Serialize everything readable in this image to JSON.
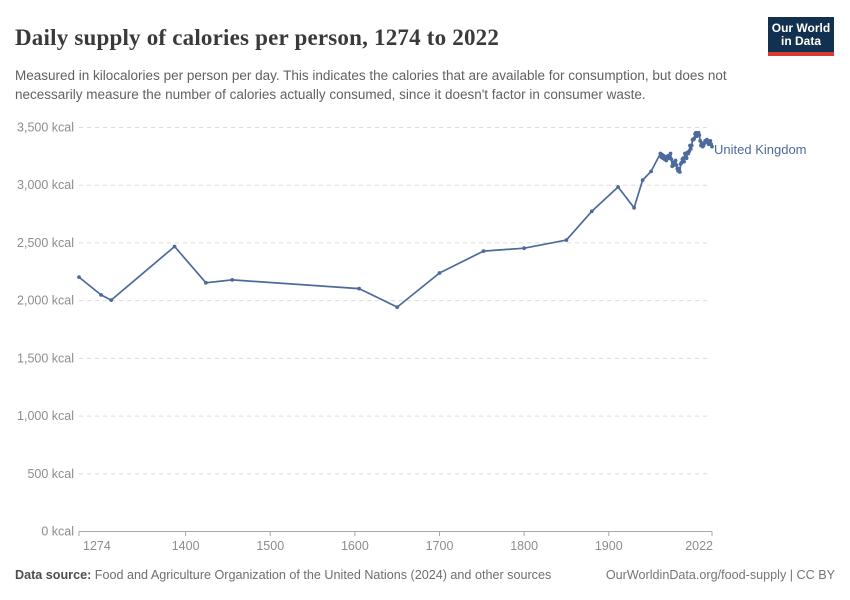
{
  "header": {
    "title": "Daily supply of calories per person, 1274 to 2022",
    "subtitle": "Measured in kilocalories per person per day. This indicates the calories that are available for consumption, but does not necessarily measure the number of calories actually consumed, since it doesn't factor in consumer waste.",
    "logo": {
      "line1": "Our World",
      "line2": "in Data"
    }
  },
  "chart_data": {
    "type": "line",
    "title": "Daily supply of calories per person, 1274 to 2022",
    "unit": "kcal",
    "xlim": [
      1274,
      2022
    ],
    "ylim": [
      0,
      3500
    ],
    "grid": "horizontal-dashed",
    "legend_position": "line-end-label",
    "x_ticks": [
      {
        "value": 1274,
        "label": "1274"
      },
      {
        "value": 1400,
        "label": "1400"
      },
      {
        "value": 1500,
        "label": "1500"
      },
      {
        "value": 1600,
        "label": "1600"
      },
      {
        "value": 1700,
        "label": "1700"
      },
      {
        "value": 1800,
        "label": "1800"
      },
      {
        "value": 1900,
        "label": "1900"
      },
      {
        "value": 2022,
        "label": "2022"
      }
    ],
    "y_ticks": [
      {
        "value": 0,
        "label": "0 kcal"
      },
      {
        "value": 500,
        "label": "500 kcal"
      },
      {
        "value": 1000,
        "label": "1,000 kcal"
      },
      {
        "value": 1500,
        "label": "1,500 kcal"
      },
      {
        "value": 2000,
        "label": "2,000 kcal"
      },
      {
        "value": 2500,
        "label": "2,500 kcal"
      },
      {
        "value": 3000,
        "label": "3,000 kcal"
      },
      {
        "value": 3500,
        "label": "3,500 kcal"
      }
    ],
    "series": [
      {
        "name": "United Kingdom",
        "color": "#4C6A9C",
        "points": [
          [
            1274,
            2200
          ],
          [
            1300,
            2045
          ],
          [
            1312,
            2000
          ],
          [
            1387,
            2465
          ],
          [
            1424,
            2150
          ],
          [
            1455,
            2175
          ],
          [
            1605,
            2100
          ],
          [
            1650,
            1940
          ],
          [
            1700,
            2235
          ],
          [
            1752,
            2425
          ],
          [
            1800,
            2450
          ],
          [
            1850,
            2520
          ],
          [
            1880,
            2770
          ],
          [
            1911,
            2980
          ],
          [
            1930,
            2800
          ],
          [
            1940,
            3040
          ],
          [
            1950,
            3115
          ],
          [
            1961,
            3270
          ],
          [
            1962,
            3240
          ],
          [
            1963,
            3260
          ],
          [
            1964,
            3230
          ],
          [
            1965,
            3250
          ],
          [
            1966,
            3220
          ],
          [
            1967,
            3240
          ],
          [
            1968,
            3210
          ],
          [
            1969,
            3230
          ],
          [
            1970,
            3250
          ],
          [
            1971,
            3230
          ],
          [
            1972,
            3250
          ],
          [
            1973,
            3270
          ],
          [
            1974,
            3220
          ],
          [
            1975,
            3160
          ],
          [
            1976,
            3190
          ],
          [
            1977,
            3170
          ],
          [
            1978,
            3200
          ],
          [
            1979,
            3210
          ],
          [
            1980,
            3170
          ],
          [
            1981,
            3140
          ],
          [
            1982,
            3120
          ],
          [
            1983,
            3140
          ],
          [
            1984,
            3110
          ],
          [
            1985,
            3180
          ],
          [
            1986,
            3190
          ],
          [
            1987,
            3220
          ],
          [
            1988,
            3230
          ],
          [
            1989,
            3200
          ],
          [
            1990,
            3270
          ],
          [
            1991,
            3240
          ],
          [
            1992,
            3230
          ],
          [
            1993,
            3280
          ],
          [
            1994,
            3270
          ],
          [
            1995,
            3290
          ],
          [
            1996,
            3340
          ],
          [
            1997,
            3310
          ],
          [
            1998,
            3340
          ],
          [
            1999,
            3390
          ],
          [
            2000,
            3390
          ],
          [
            2001,
            3400
          ],
          [
            2002,
            3440
          ],
          [
            2003,
            3450
          ],
          [
            2004,
            3420
          ],
          [
            2005,
            3440
          ],
          [
            2006,
            3450
          ],
          [
            2007,
            3430
          ],
          [
            2008,
            3380
          ],
          [
            2009,
            3340
          ],
          [
            2010,
            3360
          ],
          [
            2011,
            3330
          ],
          [
            2012,
            3340
          ],
          [
            2013,
            3360
          ],
          [
            2014,
            3380
          ],
          [
            2015,
            3370
          ],
          [
            2016,
            3390
          ],
          [
            2017,
            3370
          ],
          [
            2018,
            3350
          ],
          [
            2019,
            3360
          ],
          [
            2020,
            3380
          ],
          [
            2021,
            3350
          ],
          [
            2022,
            3330
          ]
        ]
      }
    ]
  },
  "footer": {
    "source_label": "Data source:",
    "source_text": " Food and Agriculture Organization of the United Nations (2024) and other sources",
    "credit": "OurWorldinData.org/food-supply | CC BY"
  },
  "colors": {
    "line": "#4C6A9C",
    "logo_bg": "#12304f",
    "logo_stripe": "#d93a34",
    "gridline": "#dcdcdc",
    "axis": "#a9a9a9",
    "tick_text": "#8d8d8d"
  }
}
